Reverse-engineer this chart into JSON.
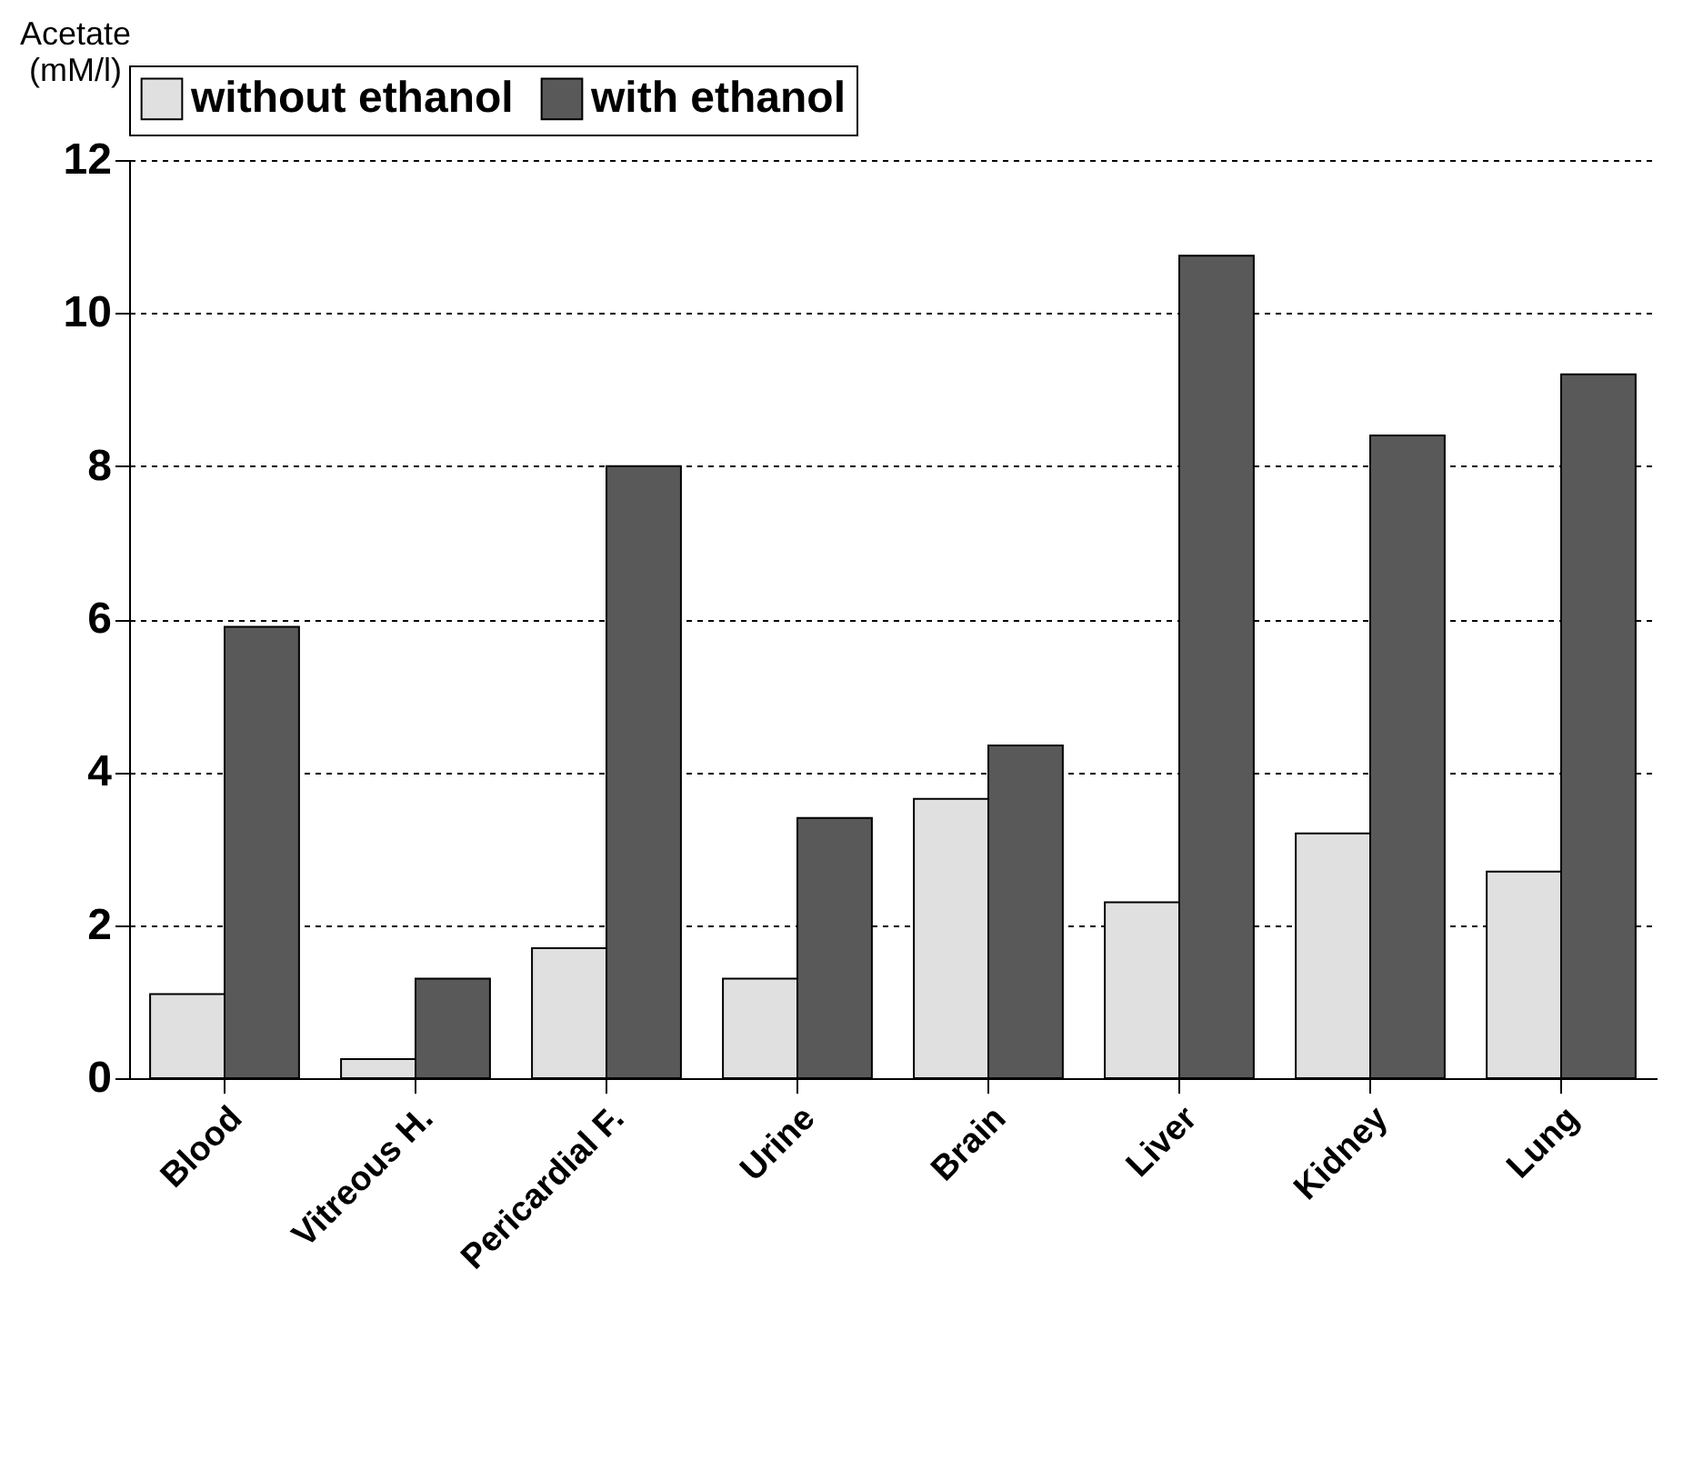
{
  "chart_data": {
    "type": "bar",
    "ylabel": "Acetate (mM/l)",
    "categories": [
      "Blood",
      "Vitreous H.",
      "Pericardial F.",
      "Urine",
      "Brain",
      "Liver",
      "Kidney",
      "Lung"
    ],
    "series": [
      {
        "name": "without ethanol",
        "color": "#e0e0e0",
        "values": [
          1.1,
          0.25,
          1.7,
          1.3,
          3.65,
          2.3,
          3.2,
          2.7
        ]
      },
      {
        "name": "with ethanol",
        "color": "#595959",
        "values": [
          5.9,
          1.3,
          8.0,
          3.4,
          4.35,
          10.75,
          8.4,
          9.2
        ]
      }
    ],
    "ylim": [
      0,
      12
    ],
    "yticks": [
      0,
      2,
      4,
      6,
      8,
      10,
      12
    ],
    "grid": "y",
    "legend": "top"
  }
}
